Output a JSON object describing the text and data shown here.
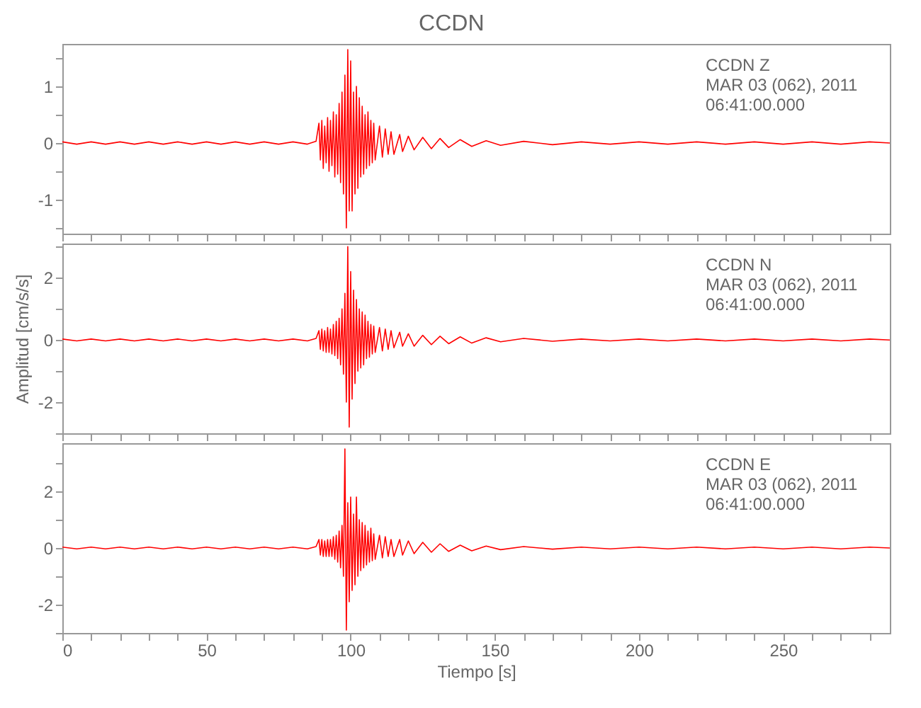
{
  "chart_data": [
    {
      "type": "line",
      "title": "CCDN",
      "tick_labels": "y",
      "grid": false,
      "annotations": [
        "CCDN   Z",
        "MAR 03 (062), 2011",
        "06:41:00.000"
      ],
      "xlim": [
        0,
        287
      ],
      "xticks": [
        0,
        {
          "value": 10,
          "label": null
        },
        {
          "value": 20,
          "label": null
        },
        {
          "value": 30,
          "label": null
        },
        {
          "value": 40,
          "label": null
        },
        50,
        {
          "value": 60,
          "label": null
        },
        {
          "value": 70,
          "label": null
        },
        {
          "value": 80,
          "label": null
        },
        {
          "value": 90,
          "label": null
        },
        100,
        {
          "value": 110,
          "label": null
        },
        {
          "value": 120,
          "label": null
        },
        {
          "value": 130,
          "label": null
        },
        {
          "value": 140,
          "label": null
        },
        150,
        {
          "value": 160,
          "label": null
        },
        {
          "value": 170,
          "label": null
        },
        {
          "value": 180,
          "label": null
        },
        {
          "value": 190,
          "label": null
        },
        200,
        {
          "value": 210,
          "label": null
        },
        {
          "value": 220,
          "label": null
        },
        {
          "value": 230,
          "label": null
        },
        {
          "value": 240,
          "label": null
        },
        250,
        {
          "value": 260,
          "label": null
        },
        {
          "value": 270,
          "label": null
        },
        {
          "value": 280,
          "label": null
        }
      ],
      "ylim": [
        -1.6,
        1.75
      ],
      "yticks": [
        {
          "value": -1.5,
          "label": null
        },
        -1,
        {
          "value": -0.5,
          "label": null
        },
        0,
        {
          "value": 0.5,
          "label": null
        },
        1,
        {
          "value": 1.5,
          "label": null
        }
      ],
      "series": [
        {
          "color": "#ff0000",
          "x": [
            0,
            5,
            10,
            15,
            20,
            25,
            30,
            35,
            40,
            45,
            50,
            55,
            60,
            65,
            70,
            75,
            80,
            85,
            88,
            89,
            89.5,
            90,
            90.5,
            91,
            91.5,
            92,
            92.5,
            93,
            93.5,
            94,
            94.5,
            95,
            95.5,
            96,
            96.5,
            97,
            97.5,
            98,
            98.5,
            99,
            99.5,
            100,
            100.5,
            101,
            101.5,
            102,
            102.5,
            103,
            103.5,
            104,
            104.5,
            105,
            105.5,
            106,
            106.5,
            107,
            107.5,
            108,
            108.5,
            110,
            111,
            112,
            113,
            114,
            115,
            117,
            118,
            120,
            122,
            125,
            128,
            131,
            134,
            138,
            142,
            147,
            152,
            160,
            170,
            180,
            190,
            200,
            210,
            220,
            230,
            240,
            250,
            260,
            270,
            280,
            287
          ],
          "values": [
            0.02,
            -0.02,
            0.02,
            -0.02,
            0.02,
            -0.02,
            0.02,
            -0.02,
            0.02,
            -0.02,
            0.02,
            -0.02,
            0.02,
            -0.02,
            0.02,
            -0.02,
            0.02,
            -0.02,
            0.03,
            0.35,
            -0.3,
            0.4,
            -0.45,
            0.3,
            -0.35,
            0.45,
            -0.5,
            0.4,
            -0.4,
            0.55,
            -0.6,
            0.5,
            -0.55,
            0.7,
            -0.7,
            0.9,
            -0.9,
            1.2,
            -1.5,
            1.65,
            -1.2,
            1.45,
            -1.2,
            0.9,
            -0.9,
            1.0,
            -0.8,
            0.8,
            -0.6,
            0.65,
            -0.55,
            0.5,
            -0.45,
            0.55,
            -0.4,
            0.4,
            -0.35,
            0.35,
            -0.3,
            0.3,
            -0.25,
            0.25,
            -0.2,
            0.2,
            -0.2,
            0.15,
            -0.15,
            0.12,
            -0.12,
            0.1,
            -0.1,
            0.08,
            -0.08,
            0.06,
            -0.06,
            0.04,
            -0.04,
            0.03,
            -0.03,
            0.02,
            -0.02,
            0.02,
            -0.02,
            0.02,
            -0.02,
            0.02,
            -0.02,
            0.02,
            -0.02,
            0.02,
            0.0
          ]
        }
      ]
    },
    {
      "type": "line",
      "ylabel": "Amplitud [cm/s/s]",
      "tick_labels": "y",
      "grid": false,
      "annotations": [
        "CCDN   N",
        "MAR 03 (062), 2011",
        "06:41:00.000"
      ],
      "xlim": [
        0,
        287
      ],
      "xticks": [
        0,
        {
          "value": 10,
          "label": null
        },
        {
          "value": 20,
          "label": null
        },
        {
          "value": 30,
          "label": null
        },
        {
          "value": 40,
          "label": null
        },
        50,
        {
          "value": 60,
          "label": null
        },
        {
          "value": 70,
          "label": null
        },
        {
          "value": 80,
          "label": null
        },
        {
          "value": 90,
          "label": null
        },
        100,
        {
          "value": 110,
          "label": null
        },
        {
          "value": 120,
          "label": null
        },
        {
          "value": 130,
          "label": null
        },
        {
          "value": 140,
          "label": null
        },
        150,
        {
          "value": 160,
          "label": null
        },
        {
          "value": 170,
          "label": null
        },
        {
          "value": 180,
          "label": null
        },
        {
          "value": 190,
          "label": null
        },
        200,
        {
          "value": 210,
          "label": null
        },
        {
          "value": 220,
          "label": null
        },
        {
          "value": 230,
          "label": null
        },
        {
          "value": 240,
          "label": null
        },
        250,
        {
          "value": 260,
          "label": null
        },
        {
          "value": 270,
          "label": null
        },
        {
          "value": 280,
          "label": null
        }
      ],
      "ylim": [
        -3,
        3.1
      ],
      "yticks": [
        {
          "value": -3,
          "label": null
        },
        -2,
        {
          "value": -1,
          "label": null
        },
        0,
        {
          "value": 1,
          "label": null
        },
        2,
        {
          "value": 3,
          "label": null
        }
      ],
      "series": [
        {
          "color": "#ff0000",
          "x": [
            0,
            5,
            10,
            15,
            20,
            25,
            30,
            35,
            40,
            45,
            50,
            55,
            60,
            65,
            70,
            75,
            80,
            85,
            88,
            89,
            89.5,
            90,
            90.5,
            91,
            91.5,
            92,
            92.5,
            93,
            93.5,
            94,
            94.5,
            95,
            95.5,
            96,
            96.5,
            97,
            97.5,
            98,
            98.5,
            99,
            99.5,
            100,
            100.5,
            101,
            101.5,
            102,
            102.5,
            103,
            103.5,
            104,
            104.5,
            105,
            105.5,
            106,
            106.5,
            107,
            107.5,
            108,
            108.5,
            110,
            111,
            112,
            113,
            114,
            115,
            117,
            118,
            120,
            122,
            125,
            128,
            131,
            134,
            138,
            142,
            147,
            152,
            160,
            170,
            180,
            190,
            200,
            210,
            220,
            230,
            240,
            250,
            260,
            270,
            280,
            287
          ],
          "values": [
            0.03,
            -0.03,
            0.03,
            -0.03,
            0.03,
            -0.03,
            0.03,
            -0.03,
            0.03,
            -0.03,
            0.03,
            -0.03,
            0.03,
            -0.03,
            0.03,
            -0.03,
            0.03,
            -0.03,
            0.05,
            0.3,
            -0.3,
            0.35,
            -0.35,
            0.3,
            -0.4,
            0.4,
            -0.4,
            0.35,
            -0.45,
            0.5,
            -0.5,
            0.6,
            -0.6,
            0.7,
            -0.8,
            1.0,
            -1.1,
            1.5,
            -2.0,
            3.0,
            -2.8,
            2.2,
            -1.9,
            1.6,
            -1.4,
            1.3,
            -1.0,
            1.0,
            -0.9,
            0.9,
            -0.8,
            0.8,
            -0.6,
            0.6,
            -0.55,
            0.5,
            -0.45,
            0.45,
            -0.4,
            0.4,
            -0.35,
            0.35,
            -0.3,
            0.3,
            -0.25,
            0.25,
            -0.2,
            0.2,
            -0.2,
            0.15,
            -0.15,
            0.12,
            -0.12,
            0.1,
            -0.1,
            0.07,
            -0.06,
            0.05,
            -0.04,
            0.03,
            -0.03,
            0.03,
            -0.03,
            0.03,
            -0.03,
            0.03,
            -0.03,
            0.03,
            -0.03,
            0.03,
            0.0
          ]
        }
      ]
    },
    {
      "type": "line",
      "xlabel": "Tiempo [s]",
      "grid": false,
      "annotations": [
        "CCDN   E",
        "MAR 03 (062), 2011",
        "06:41:00.000"
      ],
      "xlim": [
        0,
        287
      ],
      "xticks": [
        0,
        {
          "value": 10,
          "label": null
        },
        {
          "value": 20,
          "label": null
        },
        {
          "value": 30,
          "label": null
        },
        {
          "value": 40,
          "label": null
        },
        50,
        {
          "value": 60,
          "label": null
        },
        {
          "value": 70,
          "label": null
        },
        {
          "value": 80,
          "label": null
        },
        {
          "value": 90,
          "label": null
        },
        100,
        {
          "value": 110,
          "label": null
        },
        {
          "value": 120,
          "label": null
        },
        {
          "value": 130,
          "label": null
        },
        {
          "value": 140,
          "label": null
        },
        150,
        {
          "value": 160,
          "label": null
        },
        {
          "value": 170,
          "label": null
        },
        {
          "value": 180,
          "label": null
        },
        {
          "value": 190,
          "label": null
        },
        200,
        {
          "value": 210,
          "label": null
        },
        {
          "value": 220,
          "label": null
        },
        {
          "value": 230,
          "label": null
        },
        {
          "value": 240,
          "label": null
        },
        250,
        {
          "value": 260,
          "label": null
        },
        {
          "value": 270,
          "label": null
        },
        {
          "value": 280,
          "label": null
        }
      ],
      "ylim": [
        -3,
        3.7
      ],
      "yticks": [
        {
          "value": -3,
          "label": null
        },
        -2,
        {
          "value": -1,
          "label": null
        },
        0,
        {
          "value": 1,
          "label": null
        },
        2,
        {
          "value": 3,
          "label": null
        }
      ],
      "series": [
        {
          "color": "#ff0000",
          "x": [
            0,
            5,
            10,
            15,
            20,
            25,
            30,
            35,
            40,
            45,
            50,
            55,
            60,
            65,
            70,
            75,
            80,
            85,
            88,
            89,
            89.5,
            90,
            90.5,
            91,
            91.5,
            92,
            92.5,
            93,
            93.5,
            94,
            94.5,
            95,
            95.5,
            96,
            96.5,
            97,
            97.5,
            98,
            98.5,
            99,
            99.5,
            100,
            100.5,
            101,
            101.5,
            102,
            102.5,
            103,
            103.5,
            104,
            104.5,
            105,
            105.5,
            106,
            106.5,
            107,
            107.5,
            108,
            108.5,
            110,
            111,
            112,
            113,
            114,
            115,
            117,
            118,
            120,
            122,
            125,
            128,
            131,
            134,
            138,
            142,
            147,
            152,
            160,
            170,
            180,
            190,
            200,
            210,
            220,
            230,
            240,
            250,
            260,
            270,
            280,
            287
          ],
          "values": [
            0.03,
            -0.03,
            0.03,
            -0.03,
            0.03,
            -0.03,
            0.03,
            -0.03,
            0.03,
            -0.03,
            0.03,
            -0.03,
            0.03,
            -0.03,
            0.03,
            -0.03,
            0.03,
            -0.03,
            0.05,
            0.3,
            -0.25,
            0.3,
            -0.3,
            0.25,
            -0.3,
            0.3,
            -0.3,
            0.3,
            -0.3,
            0.4,
            -0.4,
            0.45,
            -0.5,
            0.6,
            -0.7,
            0.8,
            -1.0,
            3.5,
            -2.9,
            1.6,
            -1.9,
            1.8,
            -1.5,
            1.2,
            -1.3,
            1.8,
            -1.0,
            1.0,
            -0.8,
            0.9,
            -0.7,
            0.8,
            -0.6,
            0.6,
            -0.5,
            0.7,
            -0.45,
            0.5,
            -0.4,
            0.45,
            -0.35,
            0.4,
            -0.3,
            0.3,
            -0.3,
            0.3,
            -0.25,
            0.25,
            -0.2,
            0.2,
            -0.15,
            0.15,
            -0.12,
            0.1,
            -0.1,
            0.07,
            -0.06,
            0.05,
            -0.04,
            0.03,
            -0.03,
            0.03,
            -0.03,
            0.03,
            -0.03,
            0.03,
            -0.03,
            0.03,
            -0.03,
            0.03,
            0.0
          ]
        }
      ]
    }
  ]
}
